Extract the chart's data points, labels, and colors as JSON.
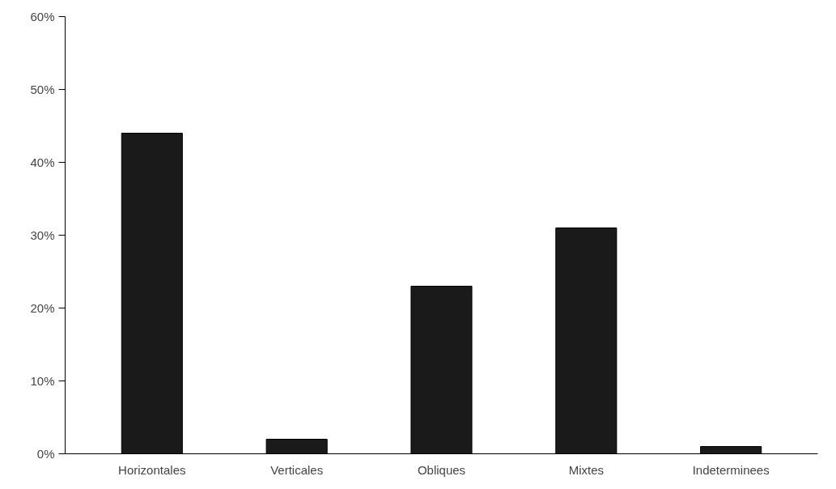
{
  "chart_data": {
    "type": "bar",
    "categories": [
      "Horizontales",
      "Verticales",
      "Obliques",
      "Mixtes",
      "Indeterminees"
    ],
    "values": [
      44,
      2,
      23,
      31,
      1
    ],
    "color": "#1a1a1a",
    "ylim": [
      0,
      60
    ],
    "yticks": [
      {
        "value": 0,
        "label": "0%"
      },
      {
        "value": 10,
        "label": "10%"
      },
      {
        "value": 20,
        "label": "20%"
      },
      {
        "value": 30,
        "label": "30%"
      },
      {
        "value": 40,
        "label": "40%"
      },
      {
        "value": 50,
        "label": "50%"
      },
      {
        "value": 60,
        "label": "60%"
      }
    ],
    "grid": false
  }
}
